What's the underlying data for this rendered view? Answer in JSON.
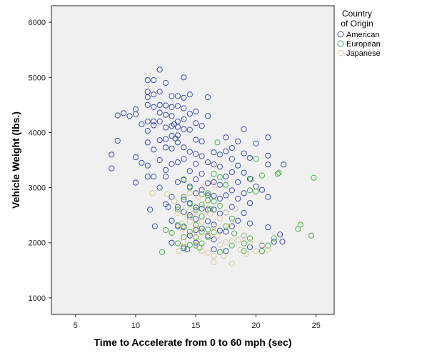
{
  "chart_data": {
    "type": "scatter",
    "xlabel": "Time to Accelerate from 0 to 60 mph (sec)",
    "ylabel": "Vehicle Weight (lbs.)",
    "xlim": [
      3.0,
      26.5
    ],
    "ylim": [
      700,
      6300
    ],
    "x_ticks": [
      5,
      10,
      15,
      20,
      25
    ],
    "y_ticks": [
      1000,
      2000,
      3000,
      4000,
      5000,
      6000
    ],
    "grid": false,
    "legend": {
      "title_lines": [
        "Country",
        "of Origin"
      ],
      "position": "right"
    },
    "series": [
      {
        "name": "American",
        "color": "#3b4fa8",
        "points": [
          [
            8.0,
            3600
          ],
          [
            8.0,
            3350
          ],
          [
            8.5,
            4310
          ],
          [
            8.5,
            3850
          ],
          [
            9.0,
            4350
          ],
          [
            9.5,
            4300
          ],
          [
            10.0,
            4420
          ],
          [
            10.0,
            4330
          ],
          [
            10.0,
            3550
          ],
          [
            10.0,
            3090
          ],
          [
            10.5,
            4150
          ],
          [
            10.5,
            3450
          ],
          [
            11.0,
            4950
          ],
          [
            11.0,
            4740
          ],
          [
            11.0,
            4640
          ],
          [
            11.0,
            4500
          ],
          [
            11.0,
            4200
          ],
          [
            11.0,
            4030
          ],
          [
            11.0,
            3820
          ],
          [
            11.0,
            3400
          ],
          [
            11.0,
            3200
          ],
          [
            11.5,
            4950
          ],
          [
            11.5,
            4690
          ],
          [
            11.5,
            4460
          ],
          [
            11.5,
            4200
          ],
          [
            11.5,
            4130
          ],
          [
            11.5,
            3690
          ],
          [
            11.5,
            3200
          ],
          [
            11.2,
            2600
          ],
          [
            11.6,
            2300
          ],
          [
            12.0,
            5140
          ],
          [
            12.0,
            4740
          ],
          [
            12.0,
            4500
          ],
          [
            12.0,
            4360
          ],
          [
            12.0,
            4200
          ],
          [
            12.0,
            3860
          ],
          [
            12.0,
            3500
          ],
          [
            12.0,
            3000
          ],
          [
            12.5,
            4900
          ],
          [
            12.5,
            4490
          ],
          [
            12.5,
            4320
          ],
          [
            12.5,
            4090
          ],
          [
            12.5,
            3880
          ],
          [
            12.5,
            3730
          ],
          [
            12.5,
            3320
          ],
          [
            12.5,
            3200
          ],
          [
            12.5,
            2700
          ],
          [
            12.7,
            2650
          ],
          [
            13.0,
            4660
          ],
          [
            13.0,
            4460
          ],
          [
            13.0,
            4300
          ],
          [
            13.0,
            4120
          ],
          [
            13.0,
            3940
          ],
          [
            13.0,
            3710
          ],
          [
            13.0,
            3430
          ],
          [
            13.0,
            2830
          ],
          [
            13.0,
            2400
          ],
          [
            13.0,
            2000
          ],
          [
            13.2,
            4150
          ],
          [
            13.3,
            3890
          ],
          [
            13.5,
            4660
          ],
          [
            13.5,
            4480
          ],
          [
            13.5,
            4200
          ],
          [
            13.5,
            4100
          ],
          [
            13.5,
            3950
          ],
          [
            13.5,
            3820
          ],
          [
            13.5,
            3460
          ],
          [
            13.5,
            3100
          ],
          [
            13.5,
            2650
          ],
          [
            13.5,
            2300
          ],
          [
            14.0,
            5000
          ],
          [
            14.0,
            4630
          ],
          [
            14.0,
            4440
          ],
          [
            14.0,
            4240
          ],
          [
            14.0,
            4060
          ],
          [
            14.0,
            3730
          ],
          [
            14.0,
            3520
          ],
          [
            14.0,
            3140
          ],
          [
            14.0,
            2780
          ],
          [
            14.0,
            2560
          ],
          [
            14.0,
            2280
          ],
          [
            14.0,
            1900
          ],
          [
            14.5,
            4690
          ],
          [
            14.5,
            4340
          ],
          [
            14.5,
            4050
          ],
          [
            14.5,
            3650
          ],
          [
            14.5,
            3300
          ],
          [
            14.5,
            3020
          ],
          [
            14.5,
            2720
          ],
          [
            14.5,
            2500
          ],
          [
            14.5,
            2130
          ],
          [
            14.3,
            1880
          ],
          [
            15.0,
            4380
          ],
          [
            15.0,
            4170
          ],
          [
            15.0,
            3870
          ],
          [
            15.0,
            3610
          ],
          [
            15.0,
            3430
          ],
          [
            15.0,
            3150
          ],
          [
            15.0,
            2900
          ],
          [
            15.0,
            2640
          ],
          [
            15.0,
            2430
          ],
          [
            15.0,
            2230
          ],
          [
            15.0,
            2000
          ],
          [
            15.5,
            4120
          ],
          [
            15.5,
            3840
          ],
          [
            15.5,
            3570
          ],
          [
            15.5,
            3250
          ],
          [
            15.5,
            2960
          ],
          [
            15.5,
            2620
          ],
          [
            15.5,
            2260
          ],
          [
            16.0,
            4640
          ],
          [
            16.0,
            4300
          ],
          [
            16.0,
            3460
          ],
          [
            16.0,
            3080
          ],
          [
            16.0,
            2860
          ],
          [
            16.0,
            2600
          ],
          [
            16.0,
            2390
          ],
          [
            16.0,
            2130
          ],
          [
            16.5,
            3640
          ],
          [
            16.5,
            3420
          ],
          [
            16.5,
            3100
          ],
          [
            16.5,
            2850
          ],
          [
            16.5,
            2600
          ],
          [
            16.5,
            2330
          ],
          [
            16.5,
            2060
          ],
          [
            16.5,
            1880
          ],
          [
            17.0,
            3600
          ],
          [
            17.0,
            3380
          ],
          [
            17.0,
            3050
          ],
          [
            17.0,
            2800
          ],
          [
            17.0,
            2530
          ],
          [
            17.0,
            2220
          ],
          [
            17.5,
            3910
          ],
          [
            17.5,
            3660
          ],
          [
            17.5,
            3200
          ],
          [
            17.5,
            2860
          ],
          [
            17.5,
            2550
          ],
          [
            17.5,
            2200
          ],
          [
            17.5,
            1850
          ],
          [
            18.0,
            3720
          ],
          [
            18.0,
            3520
          ],
          [
            18.0,
            3280
          ],
          [
            18.0,
            2950
          ],
          [
            18.0,
            2650
          ],
          [
            18.0,
            2300
          ],
          [
            18.5,
            3840
          ],
          [
            18.5,
            3400
          ],
          [
            18.5,
            3100
          ],
          [
            18.5,
            2800
          ],
          [
            18.5,
            2400
          ],
          [
            19.0,
            4060
          ],
          [
            19.0,
            3620
          ],
          [
            19.0,
            3270
          ],
          [
            19.0,
            2900
          ],
          [
            19.0,
            2540
          ],
          [
            19.0,
            2130
          ],
          [
            19.5,
            3540
          ],
          [
            19.5,
            3160
          ],
          [
            19.5,
            2720
          ],
          [
            19.5,
            2350
          ],
          [
            19.5,
            1920
          ],
          [
            20.0,
            3800
          ],
          [
            20.0,
            3020
          ],
          [
            20.5,
            2960
          ],
          [
            20.5,
            1950
          ],
          [
            21.0,
            3910
          ],
          [
            21.0,
            3580
          ],
          [
            21.0,
            3420
          ],
          [
            21.0,
            2830
          ],
          [
            21.0,
            2280
          ],
          [
            21.5,
            2020
          ],
          [
            22.0,
            2150
          ],
          [
            22.2,
            2020
          ],
          [
            22.3,
            3420
          ]
        ]
      },
      {
        "name": "European",
        "color": "#4bb04b",
        "points": [
          [
            12.2,
            1830
          ],
          [
            12.5,
            2230
          ],
          [
            13.0,
            2180
          ],
          [
            13.5,
            2600
          ],
          [
            13.5,
            2320
          ],
          [
            13.5,
            1990
          ],
          [
            14.0,
            3150
          ],
          [
            14.0,
            2830
          ],
          [
            14.0,
            2300
          ],
          [
            14.0,
            2100
          ],
          [
            14.0,
            1930
          ],
          [
            14.5,
            3000
          ],
          [
            14.5,
            2700
          ],
          [
            14.5,
            2470
          ],
          [
            14.5,
            2200
          ],
          [
            14.5,
            1960
          ],
          [
            15.0,
            2590
          ],
          [
            15.0,
            2320
          ],
          [
            15.0,
            2100
          ],
          [
            15.0,
            1950
          ],
          [
            15.5,
            2880
          ],
          [
            15.5,
            2690
          ],
          [
            15.5,
            2480
          ],
          [
            15.5,
            2200
          ],
          [
            15.5,
            1990
          ],
          [
            16.0,
            2900
          ],
          [
            16.0,
            2770
          ],
          [
            16.0,
            2240
          ],
          [
            16.0,
            2100
          ],
          [
            16.5,
            3250
          ],
          [
            16.5,
            2750
          ],
          [
            16.5,
            2190
          ],
          [
            16.8,
            3820
          ],
          [
            17.0,
            3190
          ],
          [
            17.0,
            2670
          ],
          [
            17.0,
            1830
          ],
          [
            17.5,
            3050
          ],
          [
            17.5,
            2300
          ],
          [
            18.0,
            2440
          ],
          [
            18.0,
            1950
          ],
          [
            19.0,
            1990
          ],
          [
            19.0,
            1850
          ],
          [
            19.5,
            2950
          ],
          [
            19.5,
            2080
          ],
          [
            19.6,
            3150
          ],
          [
            20.0,
            2930
          ],
          [
            20.0,
            3520
          ],
          [
            20.5,
            3220
          ],
          [
            20.5,
            1850
          ],
          [
            21.0,
            1950
          ],
          [
            21.5,
            2080
          ],
          [
            21.8,
            3250
          ],
          [
            21.9,
            3270
          ],
          [
            23.5,
            2250
          ],
          [
            23.7,
            2330
          ],
          [
            24.6,
            2130
          ],
          [
            24.8,
            3180
          ],
          [
            15.3,
            1910
          ],
          [
            18.2,
            2170
          ],
          [
            16.2,
            2610
          ]
        ]
      },
      {
        "name": "Japanese",
        "color": "#d9c9a3",
        "points": [
          [
            11.4,
            2900
          ],
          [
            12.6,
            2880
          ],
          [
            13.2,
            2760
          ],
          [
            13.5,
            2540
          ],
          [
            13.6,
            1850
          ],
          [
            13.9,
            2250
          ],
          [
            14.0,
            2020
          ],
          [
            14.2,
            2640
          ],
          [
            14.5,
            2900
          ],
          [
            14.5,
            2380
          ],
          [
            14.7,
            2150
          ],
          [
            14.8,
            2530
          ],
          [
            15.0,
            2260
          ],
          [
            15.0,
            1960
          ],
          [
            15.2,
            2830
          ],
          [
            15.3,
            2100
          ],
          [
            15.5,
            2380
          ],
          [
            15.5,
            1850
          ],
          [
            15.8,
            2700
          ],
          [
            16.0,
            2140
          ],
          [
            16.0,
            1820
          ],
          [
            16.2,
            2520
          ],
          [
            16.5,
            2300
          ],
          [
            16.5,
            1650
          ],
          [
            16.5,
            1760
          ],
          [
            16.8,
            2130
          ],
          [
            17.0,
            2440
          ],
          [
            17.0,
            1960
          ],
          [
            17.3,
            1760
          ],
          [
            17.5,
            2550
          ],
          [
            17.5,
            2010
          ],
          [
            17.7,
            2300
          ],
          [
            18.0,
            2030
          ],
          [
            18.0,
            1620
          ],
          [
            18.3,
            2620
          ],
          [
            18.5,
            2050
          ],
          [
            18.7,
            1870
          ],
          [
            19.0,
            2130
          ],
          [
            19.2,
            1800
          ],
          [
            19.5,
            2010
          ],
          [
            20.0,
            1850
          ],
          [
            20.5,
            1960
          ],
          [
            21.0,
            1870
          ],
          [
            15.7,
            3000
          ],
          [
            16.6,
            3040
          ],
          [
            14.3,
            2480
          ],
          [
            13.8,
            2350
          ]
        ]
      }
    ]
  }
}
